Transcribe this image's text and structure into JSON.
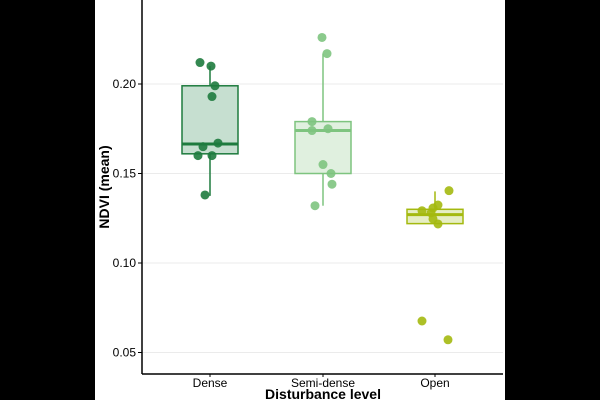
{
  "chart_data": {
    "type": "box",
    "title": "",
    "xlabel": "Disturbance level",
    "ylabel": "NDVI (mean)",
    "ylim": [
      0.04,
      0.245
    ],
    "yticks": [
      0.05,
      0.1,
      0.15,
      0.2
    ],
    "ytick_labels": [
      "0.05",
      "0.10",
      "0.15",
      "0.20"
    ],
    "grid": "horizontal-major",
    "categories": [
      "Dense",
      "Semi-dense",
      "Open"
    ],
    "series": [
      {
        "name": "Dense",
        "color": "#1e7b3e",
        "fill": "#c6dfd0",
        "box": {
          "q1": 0.161,
          "median": 0.1665,
          "q3": 0.199,
          "whisker_low": 0.1375,
          "whisker_high": 0.21
        },
        "points": [
          0.212,
          0.21,
          0.199,
          0.193,
          0.167,
          0.165,
          0.16,
          0.16,
          0.138
        ]
      },
      {
        "name": "Semi-dense",
        "color": "#7ec47f",
        "fill": "#e0f0df",
        "box": {
          "q1": 0.15,
          "median": 0.174,
          "q3": 0.179,
          "whisker_low": 0.132,
          "whisker_high": 0.217
        },
        "points": [
          0.226,
          0.217,
          0.179,
          0.175,
          0.174,
          0.155,
          0.15,
          0.144,
          0.132
        ]
      },
      {
        "name": "Open",
        "color": "#a4b90f",
        "fill": "#e6eec4",
        "box": {
          "q1": 0.122,
          "median": 0.127,
          "q3": 0.13,
          "whisker_low": 0.122,
          "whisker_high": 0.14
        },
        "points": [
          0.1404,
          0.1324,
          0.1307,
          0.1292,
          0.128,
          0.1246,
          0.1218,
          0.0676,
          0.0571
        ]
      }
    ]
  }
}
